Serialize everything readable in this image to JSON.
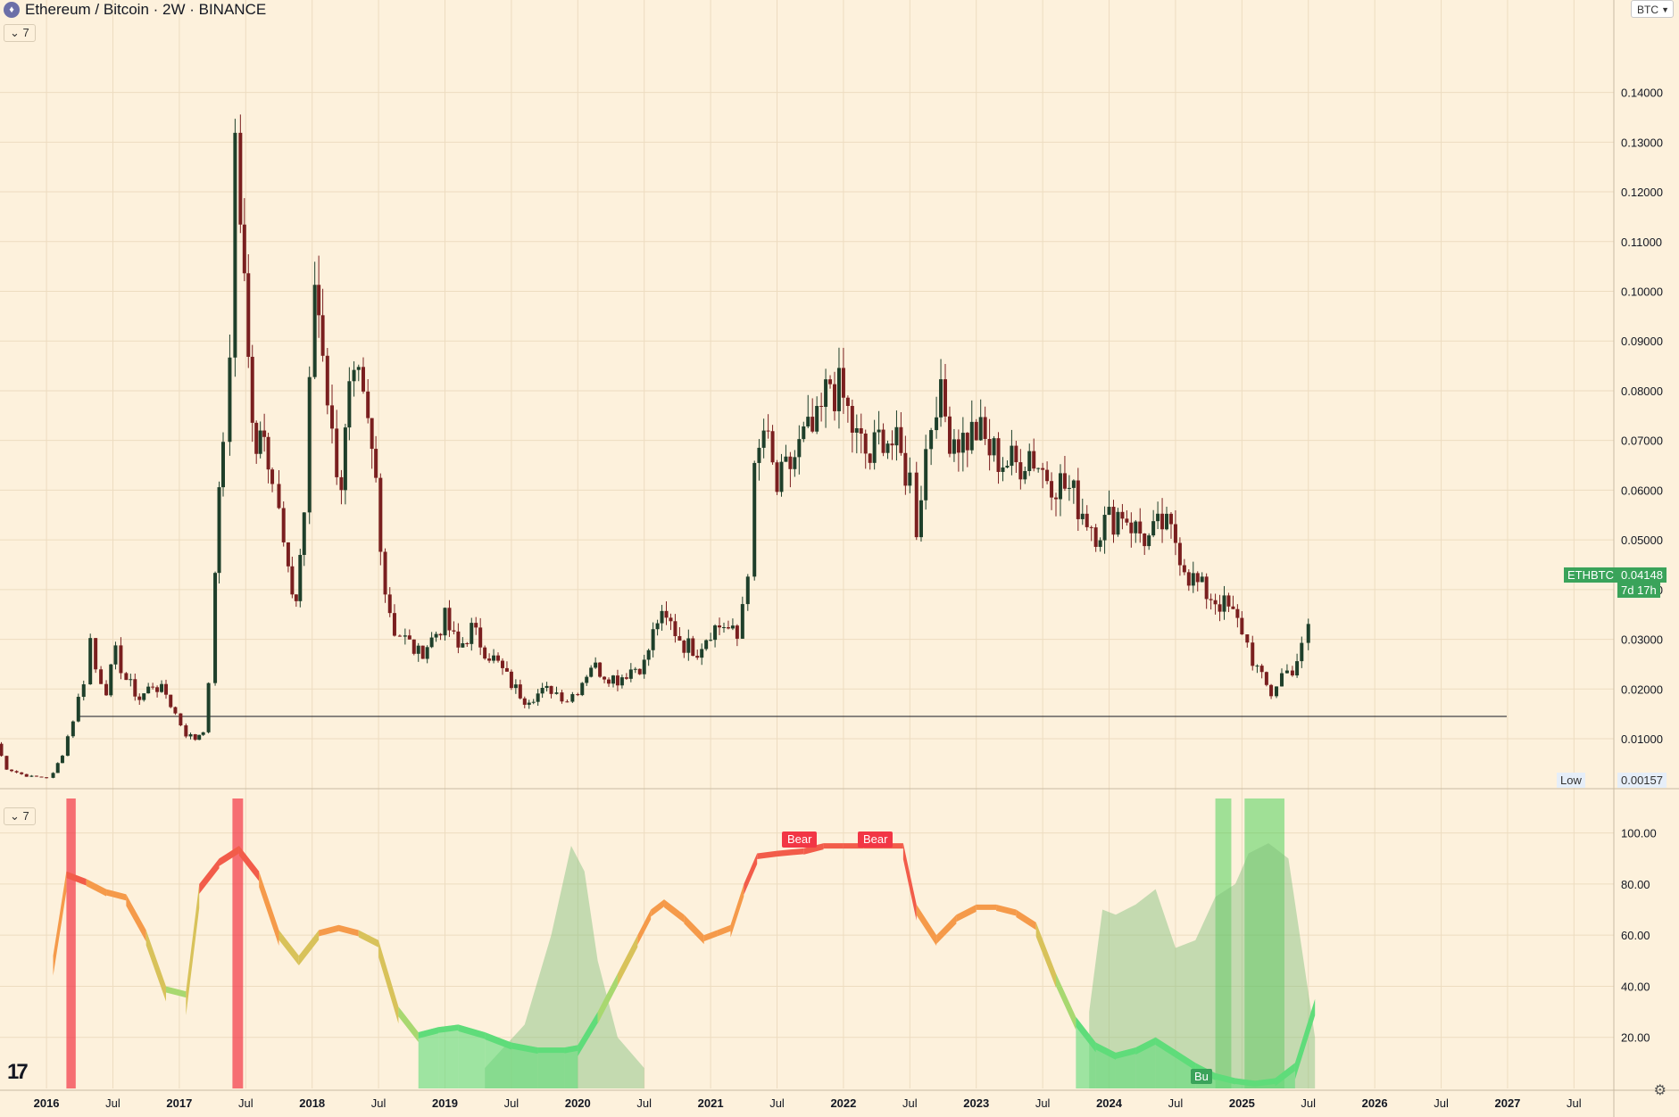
{
  "header": {
    "symbol_icon": "ethereum-icon",
    "title": "Ethereum / Bitcoin · 2W · BINANCE"
  },
  "panes": {
    "main_collapse": "7",
    "osc_collapse": "7"
  },
  "currency_unit": "BTC",
  "price_tag": {
    "symbol": "ETHBTC",
    "price": "0.04148",
    "countdown": "7d 17h"
  },
  "low_tag": {
    "label": "Low",
    "price": "0.00157"
  },
  "bear_labels": [
    "Bear",
    "Bear"
  ],
  "bull_label": "Bu",
  "colors": {
    "bg": "#fdf1dc",
    "up": "#1e3f2a",
    "down": "#7a1f1f",
    "green_tag": "#3aa35a",
    "bear": "#f23645"
  },
  "chart_data": [
    {
      "type": "candlestick",
      "price_axis_ticks": [
        "0.14000",
        "0.13000",
        "0.12000",
        "0.11000",
        "0.10000",
        "0.09000",
        "0.08000",
        "0.07000",
        "0.06000",
        "0.05000",
        "0.04000",
        "0.03000",
        "0.02000",
        "0.01000"
      ],
      "ylim": [
        0.00157,
        0.155
      ],
      "time_axis_ticks": [
        "2016",
        "Jul",
        "2017",
        "Jul",
        "2018",
        "Jul",
        "2019",
        "Jul",
        "2020",
        "Jul",
        "2021",
        "Jul",
        "2022",
        "Jul",
        "2023",
        "Jul",
        "2024",
        "Jul",
        "2025",
        "Jul",
        "2026",
        "Jul",
        "2027",
        "Jul"
      ],
      "xlim": [
        2015.65,
        2027.8
      ],
      "horizontal_line": 0.0145,
      "close_path": [
        [
          2015.62,
          0.009
        ],
        [
          2015.7,
          0.004
        ],
        [
          2015.85,
          0.0025
        ],
        [
          2016.0,
          0.0022
        ],
        [
          2016.05,
          0.003
        ],
        [
          2016.12,
          0.007
        ],
        [
          2016.2,
          0.014
        ],
        [
          2016.28,
          0.022
        ],
        [
          2016.33,
          0.03
        ],
        [
          2016.37,
          0.024
        ],
        [
          2016.45,
          0.02
        ],
        [
          2016.52,
          0.027
        ],
        [
          2016.6,
          0.022
        ],
        [
          2016.7,
          0.018
        ],
        [
          2016.8,
          0.021
        ],
        [
          2016.9,
          0.019
        ],
        [
          2016.97,
          0.015
        ],
        [
          2017.05,
          0.011
        ],
        [
          2017.12,
          0.01
        ],
        [
          2017.18,
          0.012
        ],
        [
          2017.22,
          0.02
        ],
        [
          2017.27,
          0.045
        ],
        [
          2017.33,
          0.07
        ],
        [
          2017.38,
          0.09
        ],
        [
          2017.42,
          0.13
        ],
        [
          2017.46,
          0.115
        ],
        [
          2017.52,
          0.085
        ],
        [
          2017.58,
          0.07
        ],
        [
          2017.64,
          0.075
        ],
        [
          2017.7,
          0.062
        ],
        [
          2017.75,
          0.055
        ],
        [
          2017.82,
          0.042
        ],
        [
          2017.88,
          0.038
        ],
        [
          2017.94,
          0.056
        ],
        [
          2018.02,
          0.102
        ],
        [
          2018.08,
          0.09
        ],
        [
          2018.15,
          0.07
        ],
        [
          2018.22,
          0.062
        ],
        [
          2018.28,
          0.078
        ],
        [
          2018.35,
          0.08
        ],
        [
          2018.42,
          0.072
        ],
        [
          2018.48,
          0.062
        ],
        [
          2018.55,
          0.04
        ],
        [
          2018.62,
          0.032
        ],
        [
          2018.7,
          0.03
        ],
        [
          2018.8,
          0.027
        ],
        [
          2018.9,
          0.03
        ],
        [
          2019.0,
          0.034
        ],
        [
          2019.1,
          0.028
        ],
        [
          2019.2,
          0.032
        ],
        [
          2019.3,
          0.028
        ],
        [
          2019.4,
          0.025
        ],
        [
          2019.5,
          0.021
        ],
        [
          2019.6,
          0.018
        ],
        [
          2019.7,
          0.019
        ],
        [
          2019.8,
          0.02
        ],
        [
          2019.92,
          0.018
        ],
        [
          2020.0,
          0.02
        ],
        [
          2020.1,
          0.025
        ],
        [
          2020.2,
          0.023
        ],
        [
          2020.3,
          0.022
        ],
        [
          2020.4,
          0.024
        ],
        [
          2020.5,
          0.025
        ],
        [
          2020.6,
          0.034
        ],
        [
          2020.7,
          0.033
        ],
        [
          2020.8,
          0.029
        ],
        [
          2020.9,
          0.028
        ],
        [
          2021.0,
          0.032
        ],
        [
          2021.1,
          0.033
        ],
        [
          2021.2,
          0.03
        ],
        [
          2021.28,
          0.045
        ],
        [
          2021.33,
          0.062
        ],
        [
          2021.4,
          0.072
        ],
        [
          2021.5,
          0.06
        ],
        [
          2021.6,
          0.065
        ],
        [
          2021.7,
          0.07
        ],
        [
          2021.8,
          0.072
        ],
        [
          2021.9,
          0.082
        ],
        [
          2022.0,
          0.078
        ],
        [
          2022.1,
          0.07
        ],
        [
          2022.2,
          0.066
        ],
        [
          2022.3,
          0.072
        ],
        [
          2022.4,
          0.068
        ],
        [
          2022.5,
          0.062
        ],
        [
          2022.55,
          0.053
        ],
        [
          2022.62,
          0.068
        ],
        [
          2022.7,
          0.08
        ],
        [
          2022.8,
          0.072
        ],
        [
          2022.9,
          0.07
        ],
        [
          2023.0,
          0.072
        ],
        [
          2023.1,
          0.068
        ],
        [
          2023.2,
          0.066
        ],
        [
          2023.3,
          0.065
        ],
        [
          2023.4,
          0.068
        ],
        [
          2023.5,
          0.064
        ],
        [
          2023.6,
          0.062
        ],
        [
          2023.7,
          0.06
        ],
        [
          2023.8,
          0.056
        ],
        [
          2023.9,
          0.052
        ],
        [
          2024.0,
          0.054
        ],
        [
          2024.1,
          0.056
        ],
        [
          2024.2,
          0.052
        ],
        [
          2024.3,
          0.05
        ],
        [
          2024.4,
          0.053
        ],
        [
          2024.5,
          0.05
        ],
        [
          2024.6,
          0.043
        ],
        [
          2024.7,
          0.04
        ],
        [
          2024.8,
          0.038
        ],
        [
          2024.9,
          0.036
        ],
        [
          2025.0,
          0.032
        ],
        [
          2025.08,
          0.026
        ],
        [
          2025.15,
          0.022
        ],
        [
          2025.22,
          0.019
        ],
        [
          2025.3,
          0.023
        ],
        [
          2025.38,
          0.024
        ],
        [
          2025.45,
          0.028
        ],
        [
          2025.5,
          0.032
        ],
        [
          2025.55,
          0.0414
        ]
      ]
    },
    {
      "type": "area",
      "axis_ticks": [
        "100.00",
        "80.00",
        "60.00",
        "40.00",
        "20.00"
      ],
      "ylim": [
        0,
        110
      ],
      "series": [
        {
          "values": [
            [
              2016.05,
              52
            ],
            [
              2016.15,
              85
            ],
            [
              2016.3,
              82
            ],
            [
              2016.45,
              78
            ],
            [
              2016.6,
              76
            ],
            [
              2016.75,
              62
            ],
            [
              2016.9,
              40
            ],
            [
              2017.05,
              38
            ],
            [
              2017.15,
              80
            ],
            [
              2017.3,
              90
            ],
            [
              2017.45,
              95
            ],
            [
              2017.6,
              85
            ],
            [
              2017.75,
              62
            ],
            [
              2017.9,
              52
            ],
            [
              2018.05,
              62
            ],
            [
              2018.2,
              64
            ],
            [
              2018.35,
              62
            ],
            [
              2018.5,
              58
            ],
            [
              2018.65,
              32
            ],
            [
              2018.8,
              22
            ],
            [
              2018.95,
              24
            ],
            [
              2019.1,
              25
            ],
            [
              2019.3,
              22
            ],
            [
              2019.5,
              18
            ],
            [
              2019.7,
              16
            ],
            [
              2019.9,
              16
            ],
            [
              2020.0,
              17
            ],
            [
              2020.15,
              30
            ],
            [
              2020.3,
              45
            ],
            [
              2020.45,
              60
            ],
            [
              2020.55,
              70
            ],
            [
              2020.65,
              74
            ],
            [
              2020.8,
              68
            ],
            [
              2020.95,
              60
            ],
            [
              2021.05,
              62
            ],
            [
              2021.15,
              64
            ],
            [
              2021.25,
              80
            ],
            [
              2021.35,
              92
            ],
            [
              2021.5,
              93
            ],
            [
              2021.7,
              94
            ],
            [
              2021.85,
              96
            ],
            [
              2022.0,
              96
            ],
            [
              2022.15,
              96
            ],
            [
              2022.3,
              96
            ],
            [
              2022.45,
              96
            ],
            [
              2022.55,
              72
            ],
            [
              2022.7,
              60
            ],
            [
              2022.85,
              68
            ],
            [
              2023.0,
              72
            ],
            [
              2023.15,
              72
            ],
            [
              2023.3,
              70
            ],
            [
              2023.45,
              65
            ],
            [
              2023.6,
              45
            ],
            [
              2023.75,
              28
            ],
            [
              2023.9,
              18
            ],
            [
              2024.05,
              14
            ],
            [
              2024.2,
              16
            ],
            [
              2024.35,
              20
            ],
            [
              2024.5,
              15
            ],
            [
              2024.65,
              10
            ],
            [
              2024.8,
              6
            ],
            [
              2024.95,
              4
            ],
            [
              2025.1,
              3
            ],
            [
              2025.25,
              4
            ],
            [
              2025.4,
              10
            ],
            [
              2025.55,
              35
            ]
          ]
        },
        {
          "values": [
            [
              2019.3,
              8
            ],
            [
              2019.6,
              25
            ],
            [
              2019.8,
              60
            ],
            [
              2019.95,
              95
            ],
            [
              2020.05,
              85
            ],
            [
              2020.15,
              50
            ],
            [
              2020.3,
              20
            ],
            [
              2020.5,
              8
            ],
            [
              2023.85,
              30
            ],
            [
              2023.95,
              70
            ],
            [
              2024.05,
              68
            ],
            [
              2024.2,
              72
            ],
            [
              2024.35,
              78
            ],
            [
              2024.5,
              55
            ],
            [
              2024.65,
              58
            ],
            [
              2024.8,
              75
            ],
            [
              2024.95,
              80
            ],
            [
              2025.05,
              92
            ],
            [
              2025.2,
              96
            ],
            [
              2025.35,
              90
            ],
            [
              2025.45,
              55
            ],
            [
              2025.55,
              20
            ]
          ]
        }
      ],
      "signal_bands": [
        {
          "color": "red",
          "x": [
            2016.15,
            2016.22
          ]
        },
        {
          "color": "red",
          "x": [
            2017.4,
            2017.48
          ]
        },
        {
          "color": "green",
          "x": [
            2024.8,
            2024.92
          ]
        },
        {
          "color": "green",
          "x": [
            2025.02,
            2025.32
          ]
        }
      ]
    }
  ]
}
